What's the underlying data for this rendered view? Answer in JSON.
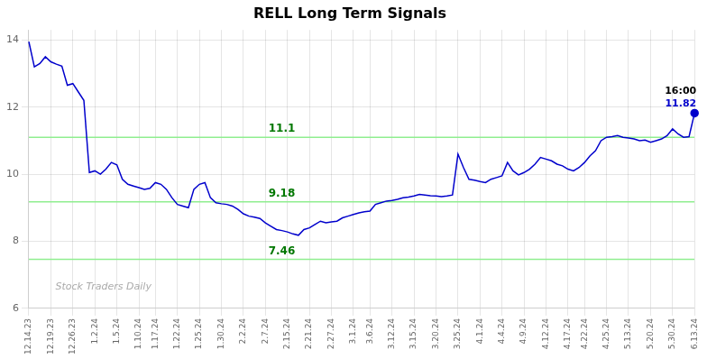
{
  "chart_data": {
    "type": "line",
    "title": "RELL Long Term Signals",
    "categories": [
      "12.14.23",
      null,
      null,
      null,
      "12.19.23",
      null,
      null,
      null,
      "12.26.23",
      null,
      null,
      null,
      "1.2.24",
      null,
      null,
      null,
      "1.5.24",
      null,
      null,
      null,
      "1.10.24",
      null,
      null,
      "1.17.24",
      null,
      null,
      null,
      "1.22.24",
      null,
      null,
      null,
      "1.25.24",
      null,
      null,
      null,
      "1.30.24",
      null,
      null,
      null,
      "2.2.24",
      null,
      null,
      null,
      "2.7.24",
      null,
      null,
      null,
      "2.15.24",
      null,
      null,
      null,
      "2.21.24",
      null,
      null,
      null,
      "2.27.24",
      null,
      null,
      null,
      "3.1.24",
      null,
      null,
      "3.6.24",
      null,
      null,
      null,
      "3.12.24",
      null,
      null,
      null,
      "3.15.24",
      null,
      null,
      null,
      "3.20.24",
      null,
      null,
      null,
      "3.25.24",
      null,
      null,
      null,
      "4.1.24",
      null,
      null,
      null,
      "4.4.24",
      null,
      null,
      null,
      "4.9.24",
      null,
      null,
      null,
      "4.12.24",
      null,
      null,
      null,
      "4.17.24",
      null,
      null,
      "4.22.24",
      null,
      null,
      null,
      "4.25.24",
      null,
      null,
      null,
      "5.13.24",
      null,
      null,
      null,
      "5.20.24",
      null,
      null,
      null,
      "5.30.24",
      null,
      null,
      null,
      "6.13.24"
    ],
    "values": [
      13.95,
      13.2,
      13.3,
      13.5,
      13.35,
      13.28,
      13.22,
      12.65,
      12.7,
      12.45,
      12.2,
      10.05,
      10.1,
      10.0,
      10.15,
      10.35,
      10.28,
      9.85,
      9.7,
      9.65,
      9.6,
      9.55,
      9.58,
      9.75,
      9.7,
      9.55,
      9.3,
      9.1,
      9.05,
      9.0,
      9.55,
      9.7,
      9.75,
      9.3,
      9.15,
      9.12,
      9.1,
      9.05,
      8.95,
      8.82,
      8.75,
      8.72,
      8.68,
      8.55,
      8.45,
      8.35,
      8.32,
      8.28,
      8.22,
      8.18,
      8.35,
      8.4,
      8.5,
      8.6,
      8.55,
      8.58,
      8.6,
      8.7,
      8.75,
      8.8,
      8.85,
      8.88,
      8.9,
      9.1,
      9.15,
      9.2,
      9.22,
      9.25,
      9.3,
      9.32,
      9.35,
      9.4,
      9.38,
      9.36,
      9.35,
      9.33,
      9.35,
      9.38,
      10.6,
      10.2,
      9.85,
      9.82,
      9.78,
      9.75,
      9.85,
      9.9,
      9.95,
      10.35,
      10.1,
      9.98,
      10.05,
      10.15,
      10.3,
      10.5,
      10.45,
      10.4,
      10.3,
      10.25,
      10.15,
      10.1,
      10.2,
      10.35,
      10.55,
      10.7,
      11.0,
      11.1,
      11.12,
      11.15,
      11.1,
      11.08,
      11.05,
      11.0,
      11.02,
      10.95,
      11.0,
      11.05,
      11.15,
      11.35,
      11.2,
      11.1,
      11.12,
      11.82
    ],
    "color": "#0000cc",
    "hlines": [
      {
        "value": 11.1,
        "label": "11.1",
        "color": "#90ee90"
      },
      {
        "value": 9.18,
        "label": "9.18",
        "color": "#90ee90"
      },
      {
        "value": 7.46,
        "label": "7.46",
        "color": "#90ee90"
      }
    ],
    "annotations": [
      {
        "text": "16:00"
      },
      {
        "text": "11.82",
        "color": "#0000cc"
      }
    ],
    "watermark": "Stock Traders Daily",
    "ylim": [
      6,
      14.3
    ],
    "yticks": [
      6,
      8,
      10,
      12,
      14
    ],
    "grid": true
  }
}
